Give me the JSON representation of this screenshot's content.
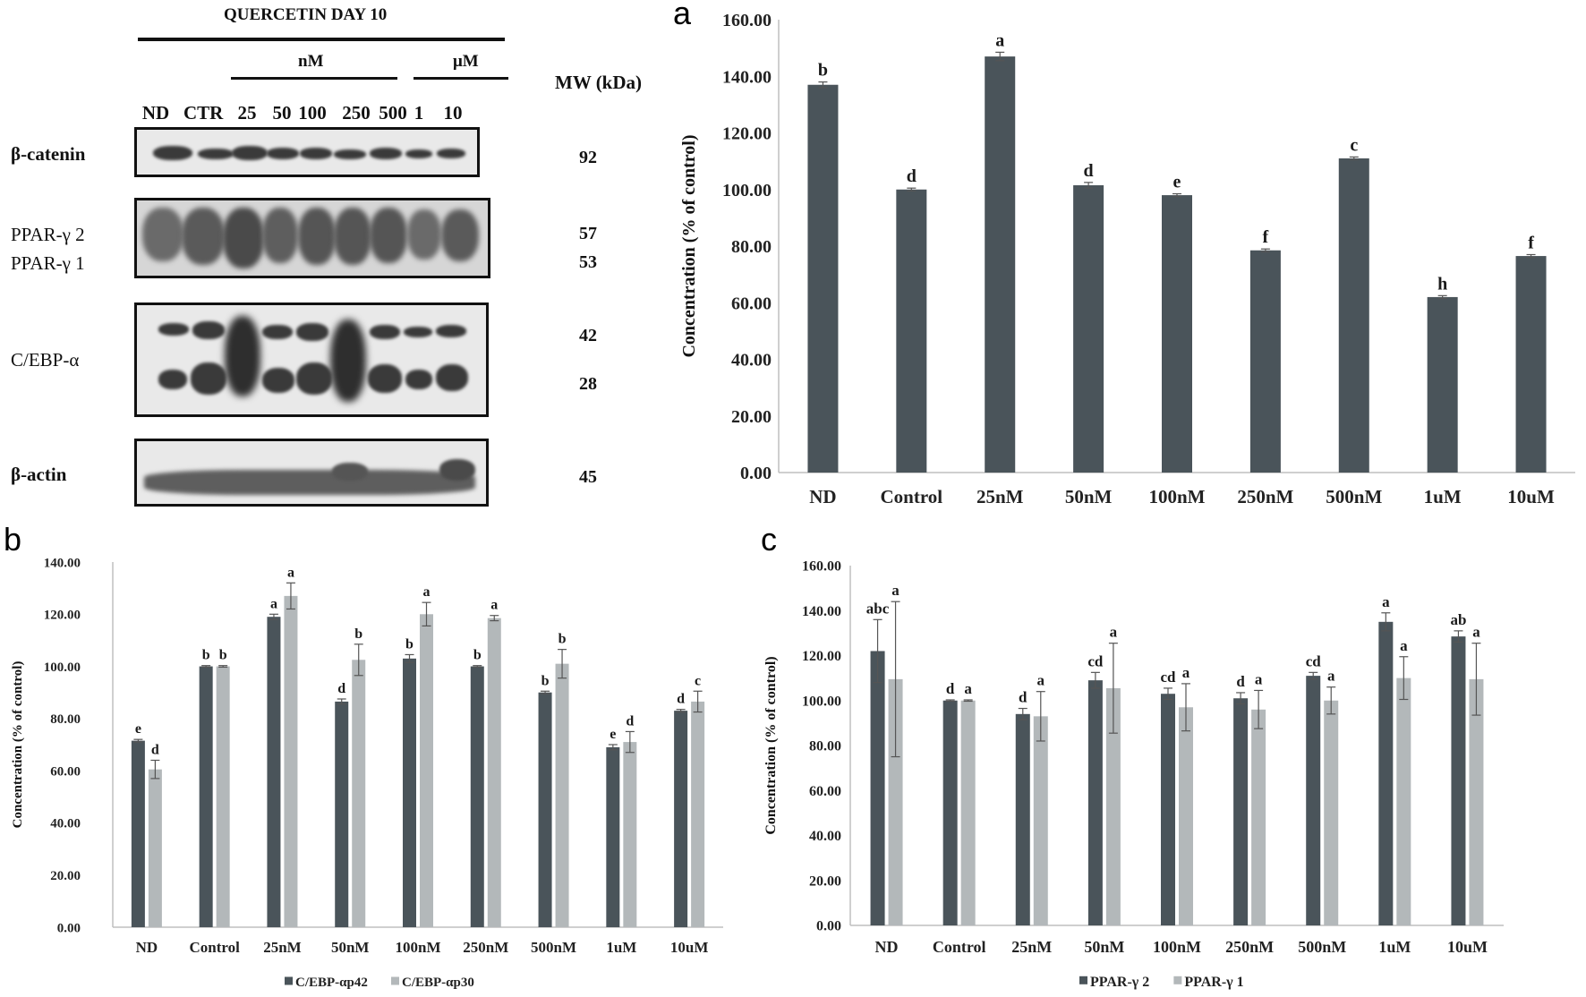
{
  "panel_letters": {
    "a": "a",
    "b": "b",
    "c": "c"
  },
  "western_blot": {
    "title": "QUERCETIN DAY 10",
    "unit_nm": "nM",
    "unit_um": "μM",
    "mw_header": "MW (kDa)",
    "lanes": [
      "ND",
      "CTR",
      "25",
      "50",
      "100",
      "250",
      "500",
      "1",
      "10"
    ],
    "proteins": [
      "β-catenin",
      "PPAR-γ 2",
      "PPAR-γ 1",
      "C/EBP-α",
      "β-actin"
    ],
    "mw_values": [
      "92",
      "57",
      "53",
      "42",
      "28",
      "45"
    ]
  },
  "chart_data": [
    {
      "type": "bar",
      "panel": "a",
      "categories": [
        "ND",
        "Control",
        "25nM",
        "50nM",
        "100nM",
        "250nM",
        "500nM",
        "1uM",
        "10uM"
      ],
      "ylabel": "Concentration (% of control)",
      "ylim": [
        0,
        160
      ],
      "yticks": [
        "0.00",
        "20.00",
        "40.00",
        "60.00",
        "80.00",
        "100.00",
        "120.00",
        "140.00",
        "160.00"
      ],
      "grid": false,
      "series": [
        {
          "color": "#4a545a",
          "values": [
            137,
            100,
            147,
            101.5,
            98,
            78.5,
            111,
            62,
            76.5
          ],
          "errors": [
            1,
            0.5,
            1.5,
            1,
            0.5,
            0.5,
            0.5,
            0.5,
            0.5
          ]
        }
      ],
      "letters": [
        [
          "b"
        ],
        [
          "d"
        ],
        [
          "a"
        ],
        [
          "d"
        ],
        [
          "e"
        ],
        [
          "f"
        ],
        [
          "c"
        ],
        [
          "h"
        ],
        [
          "f"
        ]
      ]
    },
    {
      "type": "bar",
      "panel": "b",
      "categories": [
        "ND",
        "Control",
        "25nM",
        "50nM",
        "100nM",
        "250nM",
        "500nM",
        "1uM",
        "10uM"
      ],
      "ylabel": "Concentration (% of control)",
      "ylim": [
        0,
        140
      ],
      "yticks": [
        "0.00",
        "20.00",
        "40.00",
        "60.00",
        "80.00",
        "100.00",
        "120.00",
        "140.00"
      ],
      "grid": false,
      "legend_position": "bottom",
      "series": [
        {
          "name": "C/EBP-αp42",
          "color": "#4a545a",
          "values": [
            71.5,
            100,
            119,
            86.5,
            103,
            100,
            90,
            69,
            83
          ],
          "errors": [
            0.5,
            0.3,
            1,
            1,
            1.5,
            0.3,
            0.5,
            1,
            0.5
          ]
        },
        {
          "name": "C/EBP-αp30",
          "color": "#b3b8ba",
          "values": [
            60.5,
            100,
            127,
            102.5,
            120,
            118.5,
            101,
            71,
            86.5
          ],
          "errors": [
            3.5,
            0.3,
            5,
            6,
            4.5,
            1,
            5.5,
            4,
            4
          ]
        }
      ],
      "letters": [
        [
          "e",
          "d"
        ],
        [
          "b",
          "b"
        ],
        [
          "a",
          "a"
        ],
        [
          "d",
          "b"
        ],
        [
          "b",
          "a"
        ],
        [
          "b",
          "a"
        ],
        [
          "b",
          "b"
        ],
        [
          "e",
          "d"
        ],
        [
          "d",
          "c"
        ]
      ]
    },
    {
      "type": "bar",
      "panel": "c",
      "categories": [
        "ND",
        "Control",
        "25nM",
        "50nM",
        "100nM",
        "250nM",
        "500nM",
        "1uM",
        "10uM"
      ],
      "ylabel": "Concentration (% of control)",
      "ylim": [
        0,
        160
      ],
      "yticks": [
        "0.00",
        "20.00",
        "40.00",
        "60.00",
        "80.00",
        "100.00",
        "120.00",
        "140.00",
        "160.00"
      ],
      "grid": false,
      "legend_position": "bottom",
      "series": [
        {
          "name": "PPAR-γ 2",
          "color": "#4a545a",
          "values": [
            122,
            100,
            94,
            109,
            103,
            101,
            111,
            135,
            128.5
          ],
          "errors": [
            14,
            0.3,
            2.5,
            3.5,
            2.5,
            2.5,
            1.5,
            4,
            2.5
          ]
        },
        {
          "name": "PPAR-γ 1",
          "color": "#b3b8ba",
          "values": [
            109.5,
            100,
            93,
            105.5,
            97,
            96,
            100,
            110,
            109.5
          ],
          "errors": [
            34.5,
            0.3,
            11,
            20,
            10.5,
            8.5,
            6,
            9.5,
            16
          ]
        }
      ],
      "letters": [
        [
          "abc",
          "a"
        ],
        [
          "d",
          "a"
        ],
        [
          "d",
          "a"
        ],
        [
          "cd",
          "a"
        ],
        [
          "cd",
          "a"
        ],
        [
          "d",
          "a"
        ],
        [
          "cd",
          "a"
        ],
        [
          "a",
          "a"
        ],
        [
          "ab",
          "a"
        ]
      ]
    }
  ]
}
